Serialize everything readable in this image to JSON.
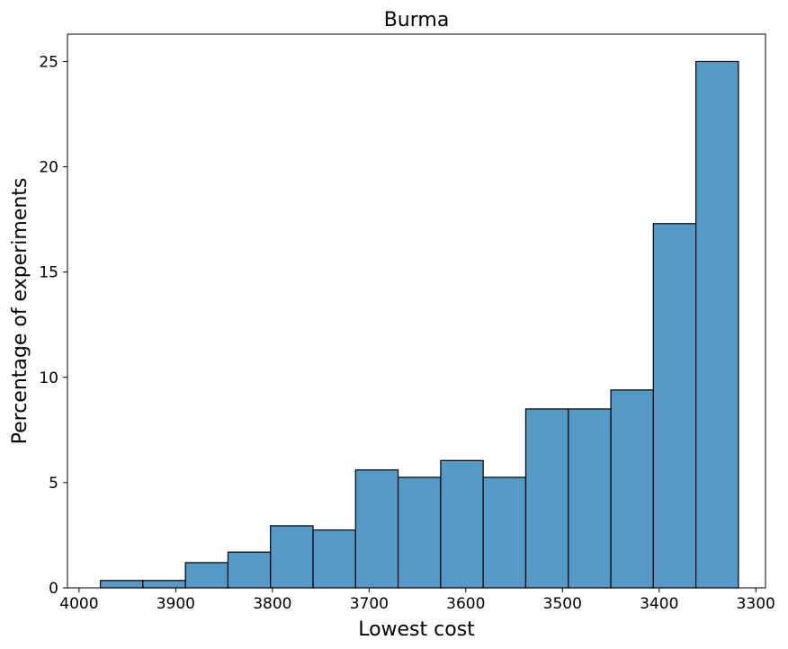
{
  "chart_data": {
    "type": "bar",
    "title": "Burma",
    "xlabel": "Lowest cost",
    "ylabel": "Percentage of experiments",
    "x_axis_inverted": true,
    "xlim": [
      4012,
      3290
    ],
    "ylim": [
      0,
      26.3
    ],
    "xticks": [
      4000,
      3900,
      3800,
      3700,
      3600,
      3500,
      3400,
      3300
    ],
    "yticks": [
      0,
      5,
      10,
      15,
      20,
      25
    ],
    "bin_edges": [
      3978,
      3934,
      3890,
      3846,
      3802,
      3758,
      3714,
      3670,
      3626,
      3582,
      3538,
      3494,
      3450,
      3406,
      3362,
      3318
    ],
    "values": [
      0.35,
      0.35,
      1.2,
      1.7,
      2.95,
      2.75,
      5.6,
      5.25,
      6.05,
      5.25,
      8.5,
      8.5,
      9.4,
      17.3,
      25.0
    ],
    "bar_color": "#5599c7",
    "edge_color": "#000000",
    "grid": false
  }
}
